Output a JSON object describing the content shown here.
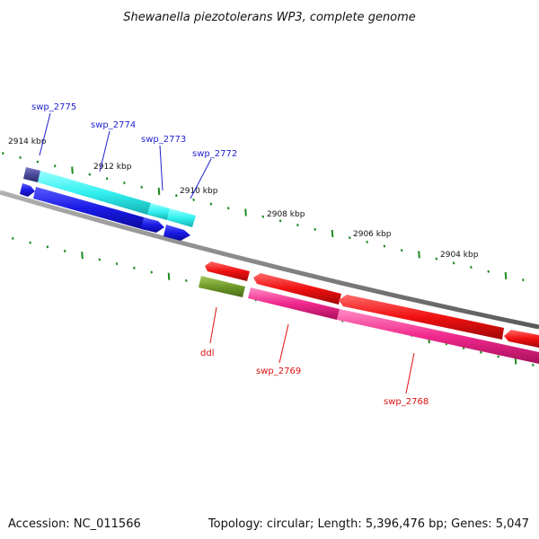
{
  "title": "Shewanella piezotolerans WP3, complete genome",
  "footer": {
    "accession": "Accession: NC_011566",
    "summary": "Topology: circular; Length: 5,396,476 bp; Genes: 5,047"
  },
  "scale_labels": {
    "kbp_2914": "2914 kbp",
    "kbp_2912": "2912 kbp",
    "kbp_2910": "2910 kbp",
    "kbp_2908": "2908 kbp",
    "kbp_2906": "2906 kbp",
    "kbp_2904": "2904 kbp"
  },
  "gene_labels": {
    "swp_2775": "swp_2775",
    "swp_2774": "swp_2774",
    "swp_2773": "swp_2773",
    "swp_2772": "swp_2772",
    "ddl": "ddl",
    "swp_2769": "swp_2769",
    "swp_2768": "swp_2768"
  },
  "colors": {
    "backbone": "#8a8a8a",
    "tick": "#1e8a1e",
    "cds_top_blue": "#1a1ae6",
    "cds_top_cyan": "#33f0f0",
    "cds_top_purple": "#4a4a9a",
    "cds_bottom_red": "#f01010",
    "cds_bottom_magenta": "#f0288c",
    "cds_bottom_olive": "#6f9a2a",
    "label_top": "#1f1fd0",
    "label_bottom": "#e01010"
  }
}
